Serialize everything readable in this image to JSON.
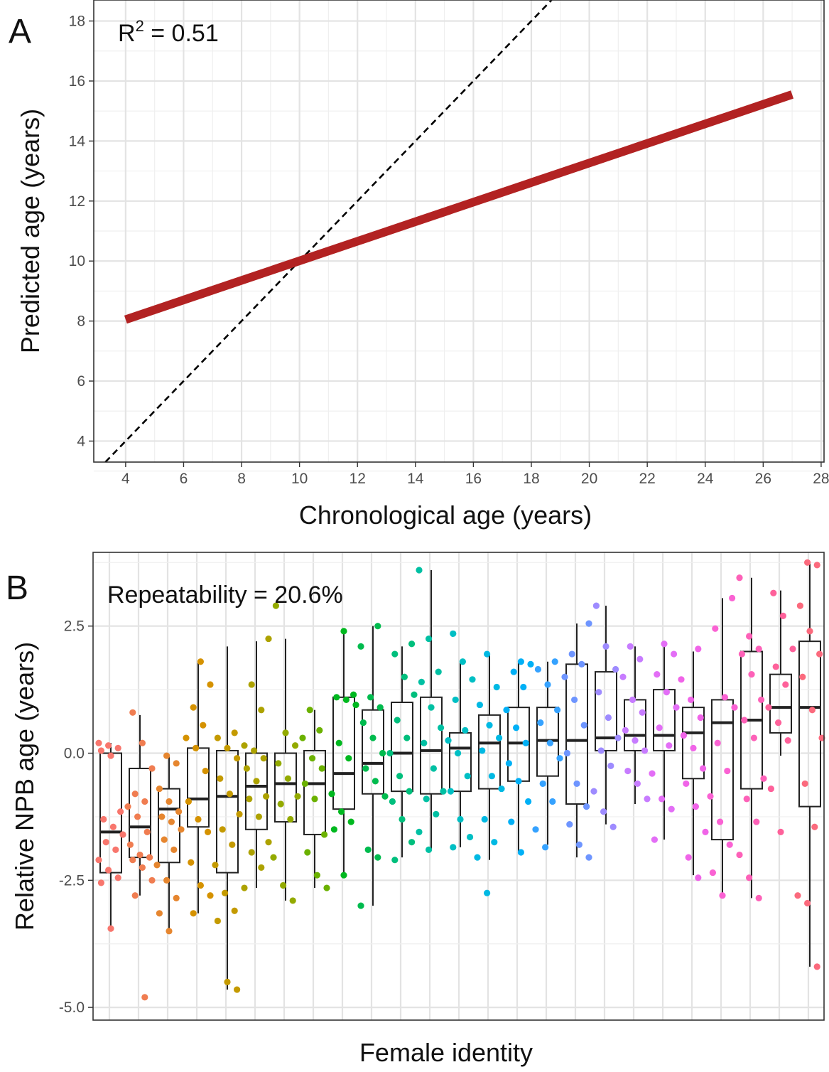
{
  "chart_data": [
    {
      "panel": "A",
      "type": "line",
      "xlabel": "Chronological age (years)",
      "ylabel": "Predicted age (years)",
      "xlim": [
        2.9,
        28.1
      ],
      "ylim": [
        3.3,
        18.7
      ],
      "x_ticks": [
        4,
        6,
        8,
        10,
        12,
        14,
        16,
        18,
        20,
        22,
        24,
        26,
        28
      ],
      "y_ticks": [
        4,
        6,
        8,
        10,
        12,
        14,
        16,
        18
      ],
      "annotation_base": "R",
      "annotation_sup": "2",
      "annotation_rest": " = 0.51",
      "series": [
        {
          "name": "Fitted relationship",
          "color": "#b22222",
          "x": [
            4,
            27
          ],
          "y": [
            8.05,
            15.55
          ]
        },
        {
          "name": "1:1 line",
          "color": "#000000",
          "dash": true,
          "x": [
            3.3,
            18.7
          ],
          "y": [
            3.3,
            18.7
          ]
        }
      ]
    },
    {
      "panel": "B",
      "type": "box",
      "xlabel": "Female identity",
      "ylabel": "Relative NPB age (years)",
      "ylim": [
        -5.25,
        3.95
      ],
      "y_ticks": [
        -5.0,
        -2.5,
        0.0,
        2.5
      ],
      "y_tick_labels": [
        "-5.0",
        "-2.5",
        "0.0",
        "2.5"
      ],
      "annotation": "Repeatability = 20.6%",
      "groups": [
        {
          "color": "#f8766d",
          "q1": -2.35,
          "median": -1.55,
          "q3": 0.0,
          "lower": -3.4,
          "upper": 0.2,
          "points": [
            0.2,
            0.15,
            0.1,
            0.05,
            -0.05,
            -1.15,
            -1.3,
            -1.45,
            -1.6,
            -1.75,
            -1.9,
            -2.1,
            -2.3,
            -2.45,
            -2.55,
            -3.45
          ]
        },
        {
          "color": "#f07d51",
          "q1": -2.05,
          "median": -1.45,
          "q3": -0.3,
          "lower": -2.8,
          "upper": 0.75,
          "points": [
            0.8,
            0.2,
            -0.3,
            -0.8,
            -0.95,
            -1.05,
            -1.25,
            -1.55,
            -1.8,
            -2.0,
            -2.05,
            -2.1,
            -2.25,
            -2.5,
            -2.8,
            -4.8
          ]
        },
        {
          "color": "#e6862f",
          "q1": -2.15,
          "median": -1.1,
          "q3": -0.7,
          "lower": -3.5,
          "upper": -0.05,
          "points": [
            -0.05,
            -0.2,
            -0.7,
            -0.95,
            -1.15,
            -1.25,
            -1.35,
            -1.5,
            -1.7,
            -1.9,
            -2.2,
            -2.5,
            -2.85,
            -3.15,
            -3.5
          ]
        },
        {
          "color": "#d59200",
          "q1": -1.45,
          "median": -0.9,
          "q3": 0.1,
          "lower": -3.15,
          "upper": 1.8,
          "points": [
            1.8,
            1.35,
            0.9,
            0.55,
            0.3,
            0.1,
            -0.35,
            -0.95,
            -1.3,
            -1.55,
            -2.15,
            -2.6,
            -2.8,
            -3.15
          ]
        },
        {
          "color": "#c49a00",
          "q1": -2.35,
          "median": -0.85,
          "q3": 0.05,
          "lower": -4.65,
          "upper": 2.1,
          "points": [
            0.4,
            0.3,
            0.1,
            -0.1,
            -0.5,
            -0.8,
            -1.2,
            -1.5,
            -1.8,
            -2.2,
            -2.75,
            -3.1,
            -3.3,
            -4.5,
            -4.65
          ]
        },
        {
          "color": "#ada200",
          "q1": -1.5,
          "median": -0.65,
          "q3": 0.0,
          "lower": -2.65,
          "upper": 2.2,
          "points": [
            2.25,
            1.35,
            0.85,
            0.15,
            0.05,
            -0.1,
            -0.3,
            -0.55,
            -0.85,
            -0.9,
            -1.25,
            -1.75,
            -1.95,
            -2.25,
            -2.65
          ]
        },
        {
          "color": "#93aa00",
          "q1": -1.35,
          "median": -0.6,
          "q3": 0.0,
          "lower": -2.9,
          "upper": 2.25,
          "points": [
            2.9,
            0.4,
            0.15,
            -0.2,
            -0.5,
            -0.85,
            -1.0,
            -1.3,
            -2.05,
            -2.6,
            -2.9
          ]
        },
        {
          "color": "#6bb100",
          "q1": -1.6,
          "median": -0.6,
          "q3": 0.05,
          "lower": -2.65,
          "upper": 0.85,
          "points": [
            0.85,
            0.45,
            0.3,
            -0.1,
            -0.3,
            -0.6,
            -0.9,
            -1.6,
            -1.95,
            -2.4,
            -2.65
          ]
        },
        {
          "color": "#00b81f",
          "q1": -1.1,
          "median": -0.4,
          "q3": 1.1,
          "lower": -2.4,
          "upper": 2.4,
          "points": [
            2.4,
            1.15,
            1.1,
            1.05,
            0.95,
            0.2,
            -0.1,
            -0.8,
            -1.15,
            -1.35,
            -1.5,
            -2.4
          ]
        },
        {
          "color": "#00bb4e",
          "q1": -0.8,
          "median": -0.2,
          "q3": 0.85,
          "lower": -3.0,
          "upper": 2.5,
          "points": [
            2.5,
            2.1,
            1.1,
            0.9,
            0.6,
            0.3,
            0.0,
            -0.3,
            -0.55,
            -0.85,
            -1.9,
            -2.05,
            -3.0
          ]
        },
        {
          "color": "#00bf7d",
          "q1": -0.75,
          "median": 0.0,
          "q3": 1.0,
          "lower": -2.05,
          "upper": 2.1,
          "points": [
            2.15,
            1.95,
            1.5,
            1.15,
            0.65,
            0.3,
            0.0,
            -0.45,
            -0.75,
            -0.95,
            -1.3,
            -1.75,
            -2.1
          ]
        },
        {
          "color": "#00c0a3",
          "q1": -0.8,
          "median": 0.05,
          "q3": 1.1,
          "lower": -1.9,
          "upper": 3.6,
          "points": [
            3.6,
            2.25,
            1.6,
            1.4,
            0.9,
            0.5,
            0.2,
            -0.3,
            -0.75,
            -0.9,
            -1.2,
            -1.55,
            -1.9
          ]
        },
        {
          "color": "#00bfc4",
          "q1": -0.75,
          "median": 0.1,
          "q3": 0.4,
          "lower": -1.85,
          "upper": 1.8,
          "points": [
            2.35,
            1.8,
            1.45,
            1.05,
            0.45,
            0.25,
            0.0,
            -0.45,
            -0.75,
            -1.3,
            -1.65,
            -1.85
          ]
        },
        {
          "color": "#00b9e3",
          "q1": -0.7,
          "median": 0.2,
          "q3": 0.75,
          "lower": -2.1,
          "upper": 1.95,
          "points": [
            1.95,
            1.3,
            0.95,
            0.55,
            0.3,
            0.05,
            -0.45,
            -0.7,
            -1.3,
            -1.75,
            -2.05,
            -2.75
          ]
        },
        {
          "color": "#00b0f6",
          "q1": -0.55,
          "median": 0.2,
          "q3": 0.9,
          "lower": -1.95,
          "upper": 1.8,
          "points": [
            1.8,
            1.75,
            1.6,
            1.3,
            0.85,
            0.5,
            0.2,
            -0.2,
            -0.55,
            -0.95,
            -1.35,
            -1.95
          ]
        },
        {
          "color": "#35a2ff",
          "q1": -0.45,
          "median": 0.25,
          "q3": 0.9,
          "lower": -1.8,
          "upper": 1.8,
          "points": [
            1.8,
            1.65,
            1.35,
            0.85,
            0.6,
            0.2,
            -0.1,
            -0.6,
            -0.95,
            -1.5,
            -1.85
          ]
        },
        {
          "color": "#6e95ff",
          "q1": -1.0,
          "median": 0.25,
          "q3": 1.75,
          "lower": -2.05,
          "upper": 2.55,
          "points": [
            2.55,
            1.95,
            1.75,
            1.5,
            1.05,
            0.55,
            0.0,
            -0.6,
            -1.05,
            -1.4,
            -1.8,
            -2.05
          ]
        },
        {
          "color": "#9e8bff",
          "q1": 0.05,
          "median": 0.3,
          "q3": 1.6,
          "lower": -1.4,
          "upper": 2.9,
          "points": [
            2.9,
            2.1,
            1.65,
            1.2,
            0.7,
            0.3,
            0.05,
            -0.25,
            -0.75,
            -1.15,
            -1.45
          ]
        },
        {
          "color": "#c77cff",
          "q1": 0.05,
          "median": 0.35,
          "q3": 1.05,
          "lower": -1.0,
          "upper": 2.1,
          "points": [
            2.1,
            1.85,
            1.5,
            1.05,
            0.8,
            0.45,
            0.25,
            0.05,
            -0.35,
            -0.6,
            -0.9
          ]
        },
        {
          "color": "#e36ef6",
          "q1": 0.05,
          "median": 0.35,
          "q3": 1.25,
          "lower": -1.7,
          "upper": 2.15,
          "points": [
            2.15,
            1.95,
            1.55,
            1.2,
            0.9,
            0.5,
            0.15,
            -0.4,
            -0.9,
            -1.1,
            -1.7
          ]
        },
        {
          "color": "#f064e8",
          "q1": -0.5,
          "median": 0.4,
          "q3": 0.9,
          "lower": -2.4,
          "upper": 2.0,
          "points": [
            2.05,
            1.45,
            1.05,
            0.7,
            0.35,
            0.1,
            -0.3,
            -0.6,
            -1.05,
            -1.55,
            -2.05,
            -2.45
          ]
        },
        {
          "color": "#fa62d3",
          "q1": -1.7,
          "median": 0.6,
          "q3": 1.05,
          "lower": -2.8,
          "upper": 3.05,
          "points": [
            3.05,
            2.45,
            1.1,
            0.9,
            0.2,
            -0.35,
            -0.85,
            -1.35,
            -1.8,
            -2.35,
            -2.8
          ]
        },
        {
          "color": "#fd61b8",
          "q1": -0.7,
          "median": 0.65,
          "q3": 2.0,
          "lower": -2.85,
          "upper": 3.45,
          "points": [
            3.45,
            2.3,
            2.05,
            1.95,
            1.55,
            1.05,
            0.65,
            0.3,
            -0.5,
            -0.9,
            -1.35,
            -2.0,
            -2.45,
            -2.85
          ]
        },
        {
          "color": "#fe619a",
          "q1": 0.4,
          "median": 0.9,
          "q3": 1.55,
          "lower": -0.05,
          "upper": 3.2,
          "points": [
            3.15,
            2.7,
            2.05,
            1.7,
            1.35,
            0.9,
            0.6,
            0.25,
            -0.7,
            -1.55
          ]
        },
        {
          "color": "#fb6a7d",
          "q1": -1.05,
          "median": 0.9,
          "q3": 2.2,
          "lower": -4.2,
          "upper": 3.75,
          "points": [
            3.75,
            3.7,
            2.9,
            2.4,
            1.95,
            1.5,
            0.85,
            0.3,
            -0.6,
            -1.45,
            -2.8,
            -2.95,
            -4.2
          ]
        }
      ]
    }
  ]
}
